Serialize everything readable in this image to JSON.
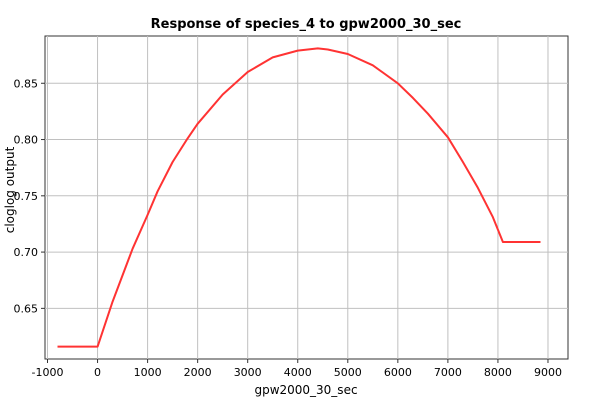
{
  "chart_data": {
    "type": "line",
    "title": "Response of species_4 to gpw2000_30_sec",
    "xlabel": "gpw2000_30_sec",
    "ylabel": "cloglog output",
    "xlim": [
      -1050,
      9400
    ],
    "ylim": [
      0.605,
      0.892
    ],
    "x_ticks": [
      -1000,
      0,
      1000,
      2000,
      3000,
      4000,
      5000,
      6000,
      7000,
      8000,
      9000
    ],
    "y_ticks": [
      0.65,
      0.7,
      0.75,
      0.8,
      0.85
    ],
    "grid": true,
    "series_color": "#ff3333",
    "series": [
      {
        "x": [
          -800,
          0,
          300,
          700,
          1000,
          1200,
          1500,
          1800,
          2000,
          2500,
          3000,
          3500,
          4000,
          4400,
          4600,
          5000,
          5500,
          6000,
          6300,
          6600,
          7000,
          7300,
          7600,
          7900,
          8100,
          8850
        ],
        "y": [
          0.616,
          0.616,
          0.656,
          0.703,
          0.733,
          0.754,
          0.78,
          0.801,
          0.814,
          0.84,
          0.86,
          0.873,
          0.879,
          0.881,
          0.88,
          0.876,
          0.866,
          0.85,
          0.837,
          0.823,
          0.802,
          0.78,
          0.757,
          0.731,
          0.709,
          0.709
        ]
      }
    ]
  }
}
